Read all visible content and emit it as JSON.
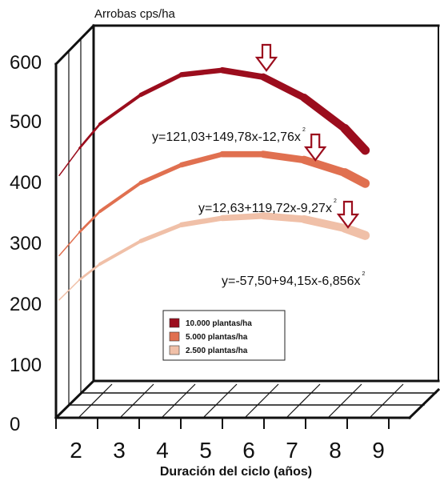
{
  "chart_data": {
    "type": "line",
    "ylabel": "Arrobas cps/ha",
    "xlabel": "Duración del ciclo (años)",
    "ylim": [
      0,
      600
    ],
    "y_ticks": [
      "0",
      "100",
      "200",
      "300",
      "400",
      "500",
      "600"
    ],
    "x_ticks": [
      "2",
      "3",
      "4",
      "5",
      "6",
      "7",
      "8",
      "9"
    ],
    "x": [
      2,
      2.5,
      3,
      4,
      5,
      6,
      7,
      8,
      9,
      9.5
    ],
    "series": [
      {
        "name": "10.000 plantas/ha",
        "color": "#9b0d1d",
        "values": [
          361,
          410,
          453,
          505,
          541,
          549,
          537,
          500,
          445,
          406
        ],
        "equation": "y=121,03+149,78x-12,76x",
        "equation_sup": "2",
        "arrow_x": 7
      },
      {
        "name": "5.000 plantas/ha",
        "color": "#e07050",
        "values": [
          218,
          260,
          297,
          348,
          380,
          399,
          399,
          389,
          366,
          347
        ],
        "equation": "y=12,63+119,72x-9,27x",
        "equation_sup": "2",
        "arrow_x": 8.2
      },
      {
        "name": "2.500 plantas/ha",
        "color": "#f0c0a8",
        "values": [
          139,
          175,
          203,
          244,
          273,
          285,
          289,
          283,
          267,
          254
        ],
        "equation": "y=-57,50+94,15x-6,856x",
        "equation_sup": "2",
        "arrow_x": 9
      }
    ],
    "grid": false,
    "legend_position": "lower-center"
  }
}
